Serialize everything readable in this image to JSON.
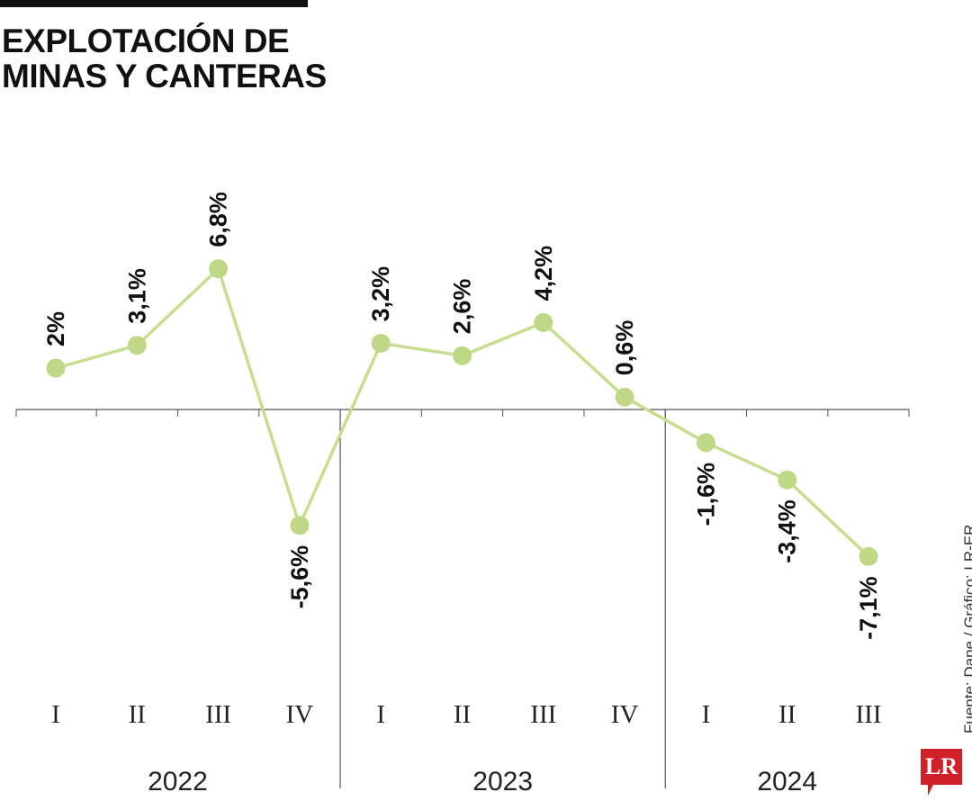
{
  "title": [
    "EXPLOTACIÓN DE",
    "MINAS Y CANTERAS"
  ],
  "source": "Fuente: Dane / Gráfico: LR-ER",
  "logo": "LR",
  "colors": {
    "line": "#c7dd8f",
    "marker": "#bed887",
    "text": "#111111",
    "logo": "#d0202a"
  },
  "chart_data": {
    "type": "line",
    "title": "EXPLOTACIÓN DE MINAS Y CANTERAS",
    "quarters": [
      "I",
      "II",
      "III",
      "IV",
      "I",
      "II",
      "III",
      "IV",
      "I",
      "II",
      "III"
    ],
    "years": [
      {
        "label": "2022",
        "count": 4
      },
      {
        "label": "2023",
        "count": 4
      },
      {
        "label": "2024",
        "count": 3
      }
    ],
    "values": [
      2,
      3.1,
      6.8,
      -5.6,
      3.2,
      2.6,
      4.2,
      0.6,
      -1.6,
      -3.4,
      -7.1
    ],
    "labels": [
      "2%",
      "3,1%",
      "6,8%",
      "-5,6%",
      "3,2%",
      "2,6%",
      "4,2%",
      "0,6%",
      "-1,6%",
      "-3,4%",
      "-7,1%"
    ],
    "unit": "%",
    "grid": false
  }
}
